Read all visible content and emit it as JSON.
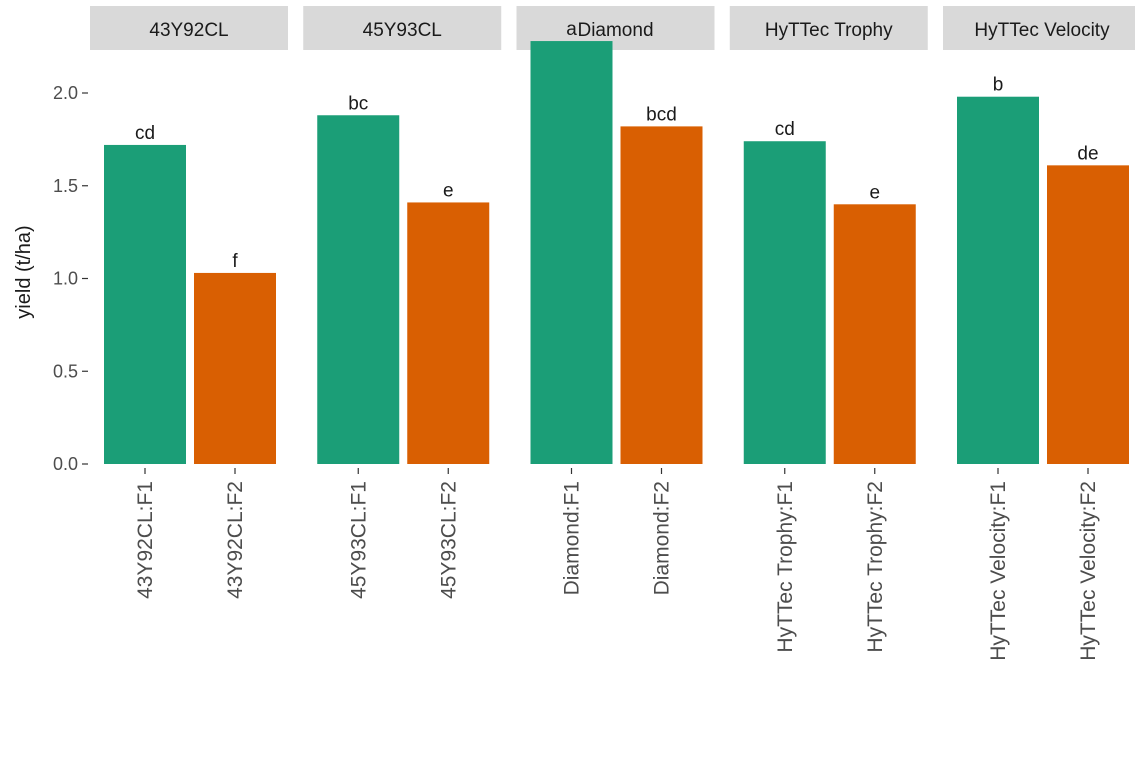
{
  "chart_data": {
    "type": "bar",
    "ylabel": "yield (t/ha)",
    "ylim": [
      0,
      2.3
    ],
    "yticks": [
      0.0,
      0.5,
      1.0,
      1.5,
      2.0
    ],
    "ytick_labels": [
      "0.0",
      "0.5",
      "1.0",
      "1.5",
      "2.0"
    ],
    "grid": false,
    "colors": {
      "F1": "#1b9e77",
      "F2": "#d95f02",
      "strip": "#d9d9d9",
      "text": "#1a1a1a",
      "axis": "#333333"
    },
    "panels": [
      {
        "title": "43Y92CL",
        "bars": [
          {
            "category": "43Y92CL:F1",
            "group": "F1",
            "value": 1.72,
            "label": "cd"
          },
          {
            "category": "43Y92CL:F2",
            "group": "F2",
            "value": 1.03,
            "label": "f"
          }
        ]
      },
      {
        "title": "45Y93CL",
        "bars": [
          {
            "category": "45Y93CL:F1",
            "group": "F1",
            "value": 1.88,
            "label": "bc"
          },
          {
            "category": "45Y93CL:F2",
            "group": "F2",
            "value": 1.41,
            "label": "e"
          }
        ]
      },
      {
        "title": "Diamond",
        "bars": [
          {
            "category": "Diamond:F1",
            "group": "F1",
            "value": 2.28,
            "label": "a"
          },
          {
            "category": "Diamond:F2",
            "group": "F2",
            "value": 1.82,
            "label": "bcd"
          }
        ]
      },
      {
        "title": "HyTTec Trophy",
        "bars": [
          {
            "category": "HyTTec Trophy:F1",
            "group": "F1",
            "value": 1.74,
            "label": "cd"
          },
          {
            "category": "HyTTec Trophy:F2",
            "group": "F2",
            "value": 1.4,
            "label": "e"
          }
        ]
      },
      {
        "title": "HyTTec Velocity",
        "bars": [
          {
            "category": "HyTTec Velocity:F1",
            "group": "F1",
            "value": 1.98,
            "label": "b"
          },
          {
            "category": "HyTTec Velocity:F2",
            "group": "F2",
            "value": 1.61,
            "label": "de"
          }
        ]
      }
    ]
  }
}
